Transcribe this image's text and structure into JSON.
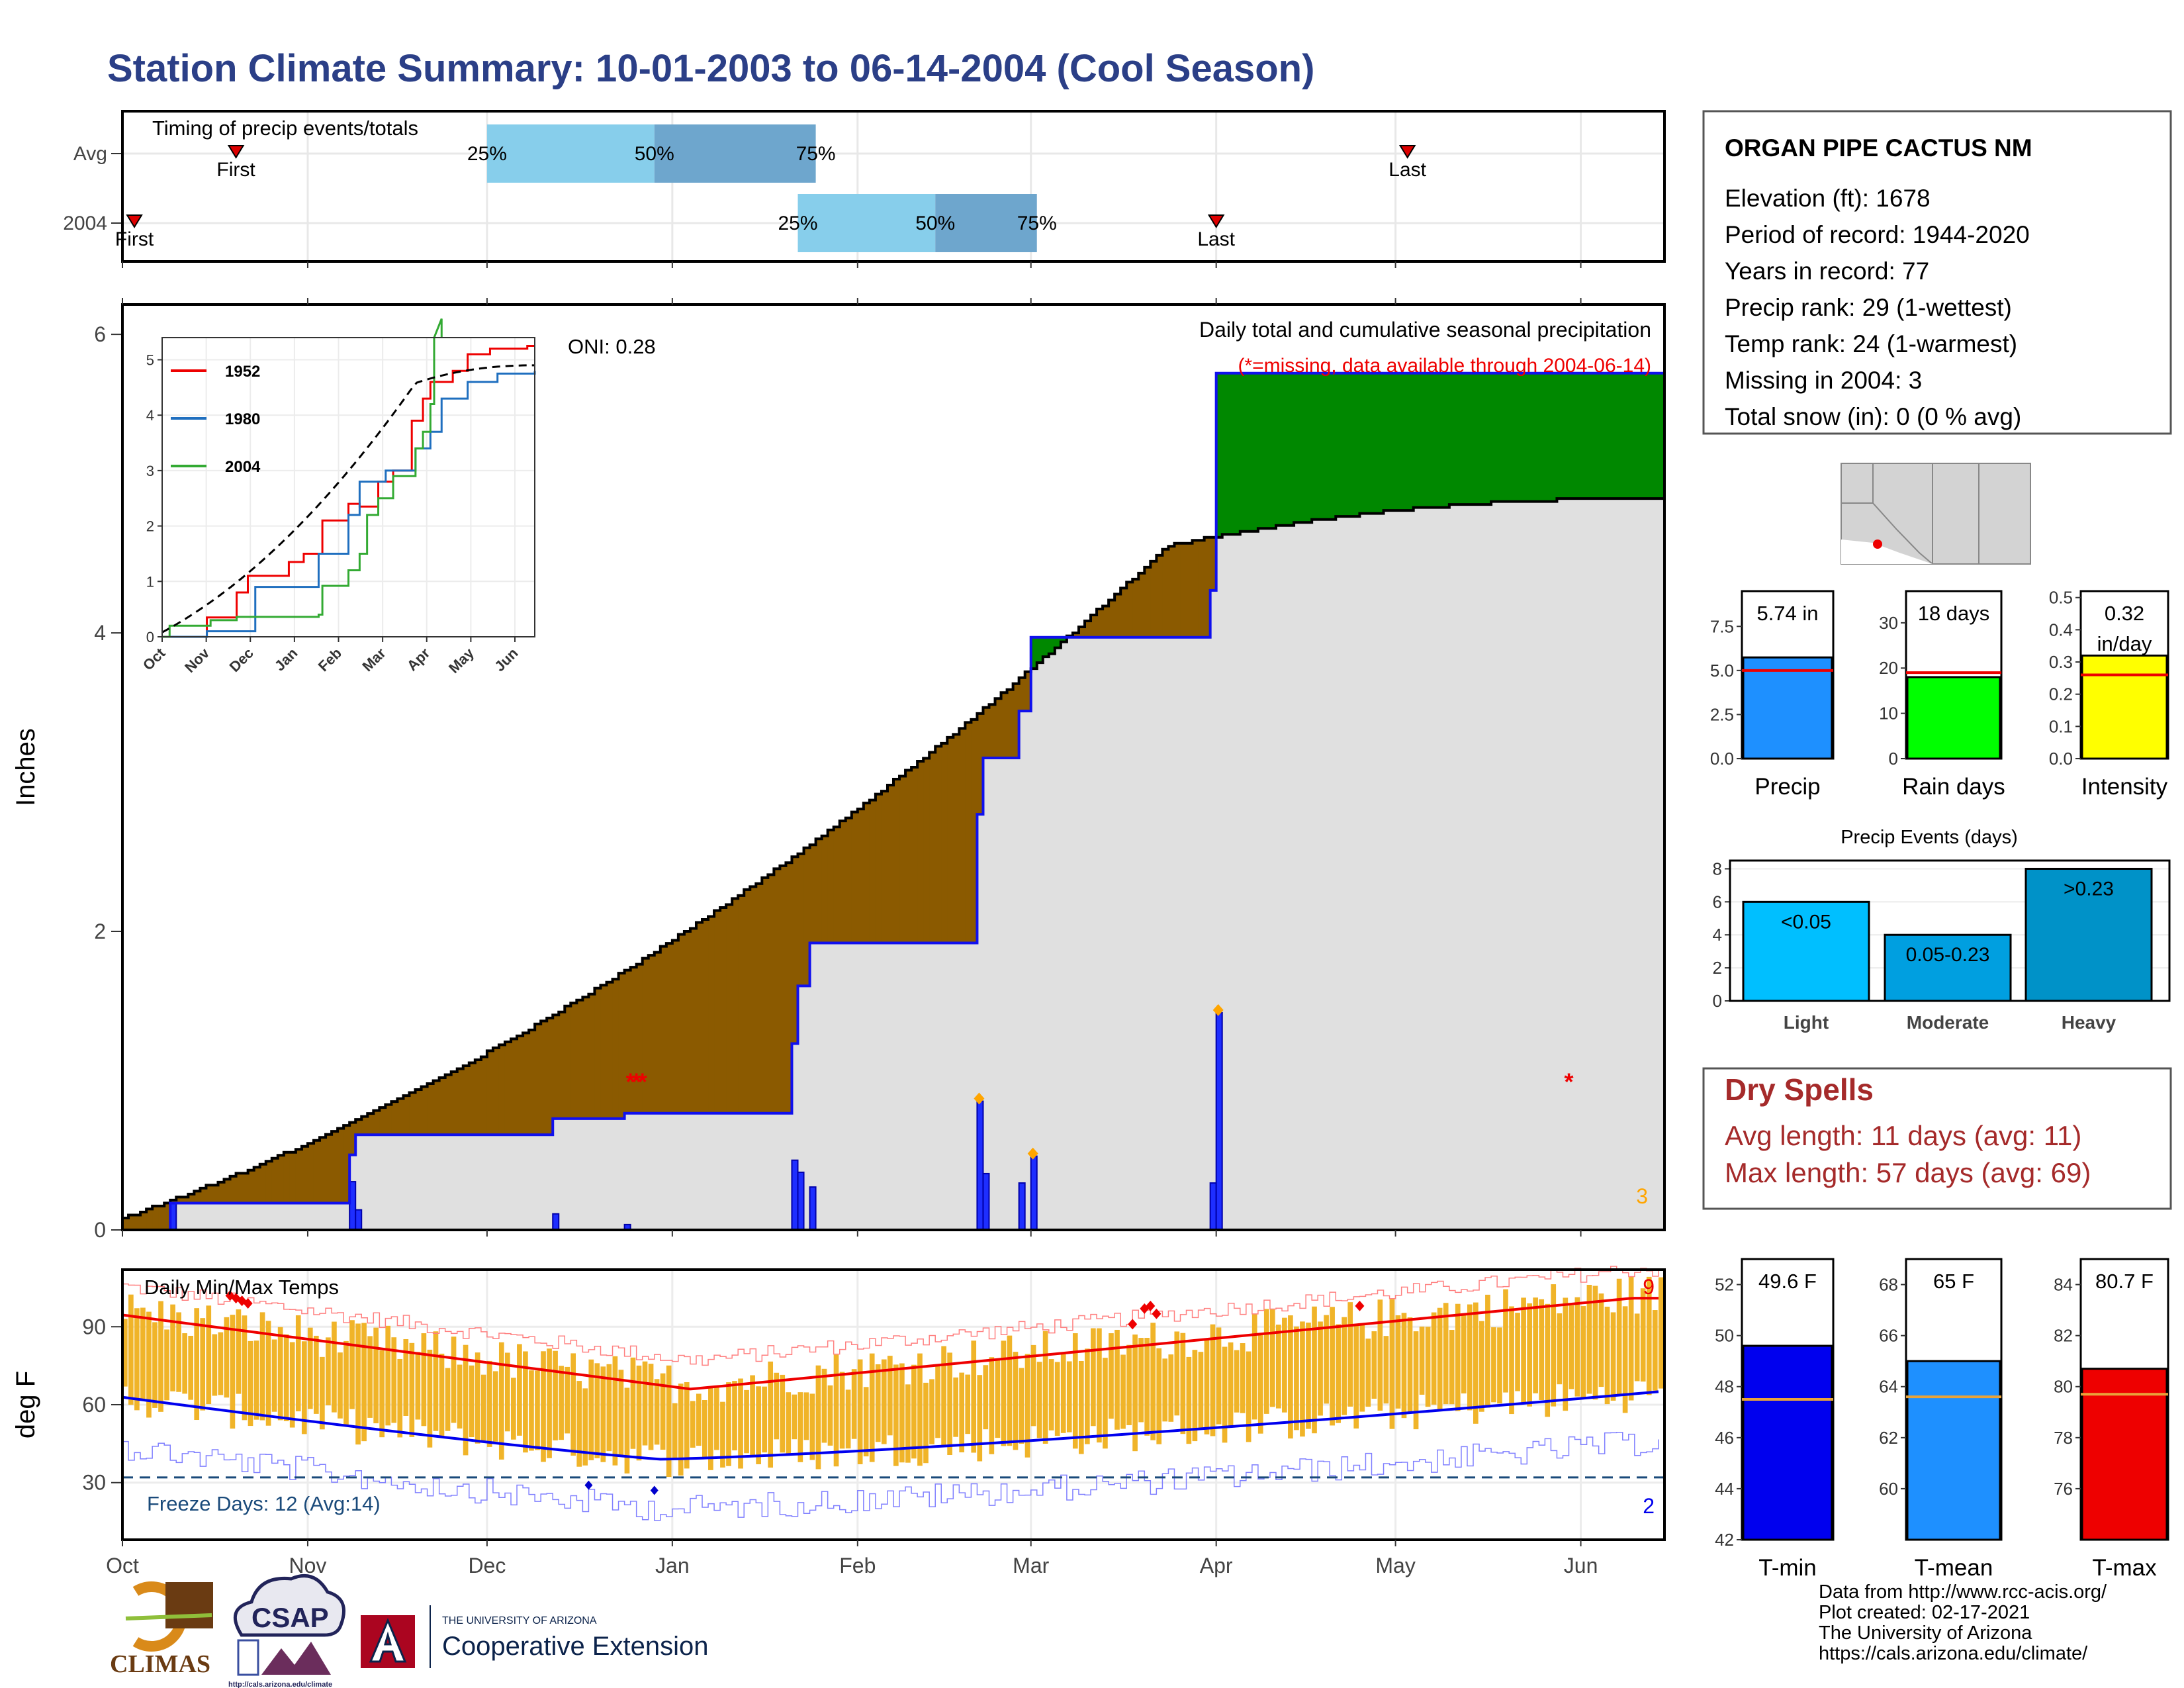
{
  "title": "Station Climate Summary: 10-01-2003 to 06-14-2004 (Cool Season)",
  "colors": {
    "title": "#2b3f87",
    "brown": "#8b5a00",
    "green": "#008800",
    "grey_fill": "#e0e0e0",
    "blue": "#0000ee",
    "red": "#ee0000",
    "orange_bars": "#f0b429",
    "light_blue": "#87ceeb",
    "steel_blue": "#6ea6cd",
    "dry_spell_text": "#a52a2a"
  },
  "timing": {
    "title": "Timing of precip events/totals",
    "rows": [
      {
        "label": "Avg",
        "first_date": "2003-10-20",
        "last_date": "2004-05-03",
        "q25_date": "2003-12-01",
        "q50_date": "2003-12-29",
        "q75_date": "2004-01-25",
        "first_label": "First",
        "last_label": "Last"
      },
      {
        "label": "2004",
        "first_date": "2003-10-03",
        "last_date": "2004-04-01",
        "q25_date": "2004-01-22",
        "q50_date": "2004-02-14",
        "q75_date": "2004-03-02",
        "first_label": "First",
        "last_label": "Last"
      }
    ],
    "pct_labels": [
      "25%",
      "50%",
      "75%"
    ]
  },
  "station": {
    "name": "ORGAN PIPE CACTUS NM",
    "lines": [
      "Elevation (ft): 1678",
      "Period of record: 1944-2020",
      "Years in record: 77",
      "Precip rank: 29 (1-wettest)",
      "Temp rank: 24 (1-warmest)",
      "Missing in 2004: 3",
      "Total snow (in): 0 (0 % avg)"
    ]
  },
  "precip_panel": {
    "ylabel": "Inches",
    "yticks": [
      0,
      2,
      4,
      6
    ],
    "ylim": [
      0,
      6.2
    ],
    "legend_line1": "Daily total and cumulative seasonal precipitation",
    "legend_line2": "(*=missing, data available through 2004-06-14)",
    "oni": "ONI: 0.28",
    "missing_count": "3",
    "avg_cum_end": 4.9,
    "obs_cum_end": 5.74
  },
  "inset": {
    "months": [
      "Oct",
      "Nov",
      "Dec",
      "Jan",
      "Feb",
      "Mar",
      "Apr",
      "May",
      "Jun"
    ],
    "yticks": [
      "0",
      "1",
      "2",
      "3",
      "4",
      "5"
    ],
    "legend": [
      {
        "name": "1952",
        "color": "#ee0000"
      },
      {
        "name": "1980",
        "color": "#1f6fbf"
      },
      {
        "name": "2004",
        "color": "#33aa33"
      }
    ]
  },
  "temp_panel": {
    "ylabel": "deg F",
    "title": "Daily Min/Max Temps",
    "yticks": [
      30,
      60,
      90
    ],
    "ylim": [
      8,
      112
    ],
    "freeze_label": "Freeze Days: 12 (Avg:14)",
    "freeze_line": 32,
    "count_top": "9",
    "count_bottom": "2"
  },
  "x_axis": {
    "months": [
      "Oct",
      "Nov",
      "Dec",
      "Jan",
      "Feb",
      "Mar",
      "Apr",
      "May",
      "Jun"
    ],
    "start": "2003-10-01",
    "end": "2004-06-14"
  },
  "bars_precip": {
    "precip": {
      "label": "Precip",
      "value_label": "5.74 in",
      "value": 5.74,
      "avg": 5.0,
      "yticks": [
        "0.0",
        "2.5",
        "5.0",
        "7.5"
      ],
      "ymax": 9.5,
      "color": "#1e90ff"
    },
    "rain_days": {
      "label": "Rain days",
      "value_label": "18 days",
      "value": 18,
      "avg": 19,
      "yticks": [
        "0",
        "10",
        "20",
        "30"
      ],
      "ymax": 37,
      "color": "#00ff00"
    },
    "intensity": {
      "label": "Intensity",
      "value_label_1": "0.32",
      "value_label_2": "in/day",
      "value": 0.32,
      "avg": 0.26,
      "yticks": [
        "0.0",
        "0.1",
        "0.2",
        "0.3",
        "0.4",
        "0.5"
      ],
      "ymax": 0.52,
      "color": "#ffff00"
    }
  },
  "precip_events": {
    "title": "Precip Events (days)",
    "yticks": [
      "0",
      "2",
      "4",
      "6",
      "8"
    ],
    "bars": [
      {
        "label": "Light",
        "value_label": "<0.05",
        "value": 6,
        "color": "#00bfff"
      },
      {
        "label": "Moderate",
        "value_label": "0.05-0.23",
        "value": 4,
        "color": "#009fe0"
      },
      {
        "label": "Heavy",
        "value_label": ">0.23",
        "value": 8,
        "color": "#0092c8"
      }
    ]
  },
  "dry_spells": {
    "title": "Dry Spells",
    "line1": "Avg length: 11 days (avg: 11)",
    "line2": "Max length: 57 days (avg: 69)"
  },
  "temp_bars": [
    {
      "label": "T-min",
      "value_label": "49.6 F",
      "value": 49.6,
      "avg": 47.5,
      "ymin": 42,
      "ymax": 53,
      "yticks": [
        "42",
        "44",
        "46",
        "48",
        "50",
        "52"
      ],
      "color": "#0000ee"
    },
    {
      "label": "T-mean",
      "value_label": "65 F",
      "value": 65.0,
      "avg": 63.6,
      "ymin": 58,
      "ymax": 69,
      "yticks": [
        "60",
        "62",
        "64",
        "66",
        "68"
      ],
      "color": "#1e90ff"
    },
    {
      "label": "T-max",
      "value_label": "80.7 F",
      "value": 80.7,
      "avg": 79.7,
      "ymin": 74,
      "ymax": 85,
      "yticks": [
        "76",
        "78",
        "80",
        "82",
        "84"
      ],
      "color": "#ee0000"
    }
  ],
  "logos": {
    "climas": "CLIMAS",
    "csap": "CSAP",
    "csap_url": "http://cals.arizona.edu/climate",
    "ua_small": "THE UNIVERSITY OF ARIZONA",
    "ua_big": "Cooperative Extension"
  },
  "footer": [
    "Data from http://www.rcc-acis.org/",
    "Plot created: 02-17-2021",
    "The University of Arizona",
    "https://cals.arizona.edu/climate/"
  ]
}
